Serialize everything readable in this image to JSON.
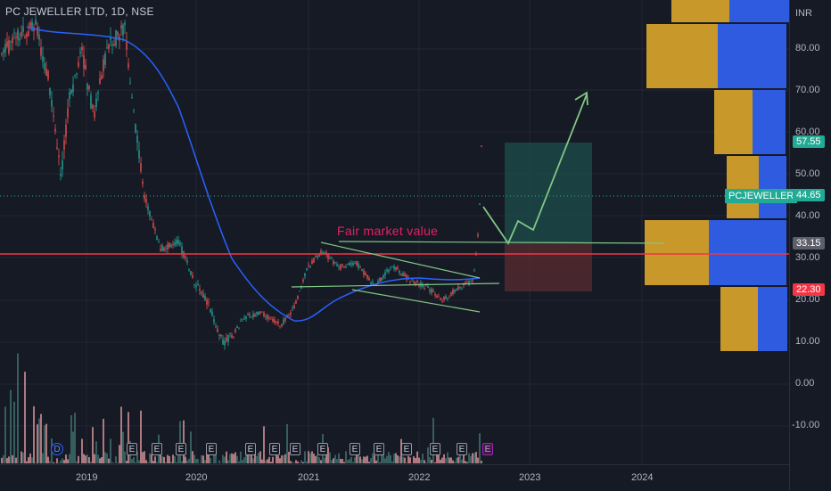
{
  "header": {
    "symbol": "PC JEWELLER LTD",
    "interval": "1D",
    "exchange": "NSE"
  },
  "price_scale": {
    "currency": "INR",
    "ticks": [
      "80.00",
      "70.00",
      "60.00",
      "50.00",
      "40.00",
      "30.00",
      "20.00",
      "10.00",
      "0.00",
      "-10.00"
    ]
  },
  "badges": {
    "target_price": "57.55",
    "ticker_label": "PCJEWELLER",
    "last_price": "44.65",
    "entry_price": "33.15",
    "stop_price": "22.30"
  },
  "time_axis": {
    "labels": [
      "2019",
      "2020",
      "2021",
      "2022",
      "2023",
      "2024"
    ]
  },
  "annotation": {
    "fair_value_text": "Fair market value"
  },
  "events": {
    "dividend_glyph": "D",
    "earnings_glyph": "E"
  },
  "colors": {
    "background": "#161a25",
    "up_candle": "#26a69a",
    "down_candle": "#ef5350",
    "moving_average": "#2962ff",
    "horizontal_line": "#f23645",
    "trendline": "#81c784",
    "annotation": "#e91e63",
    "volume_profile_up": "#c8982a",
    "volume_profile_down": "#2f5be0"
  },
  "icons": [
    "dividend-icon",
    "earnings-icon"
  ]
}
